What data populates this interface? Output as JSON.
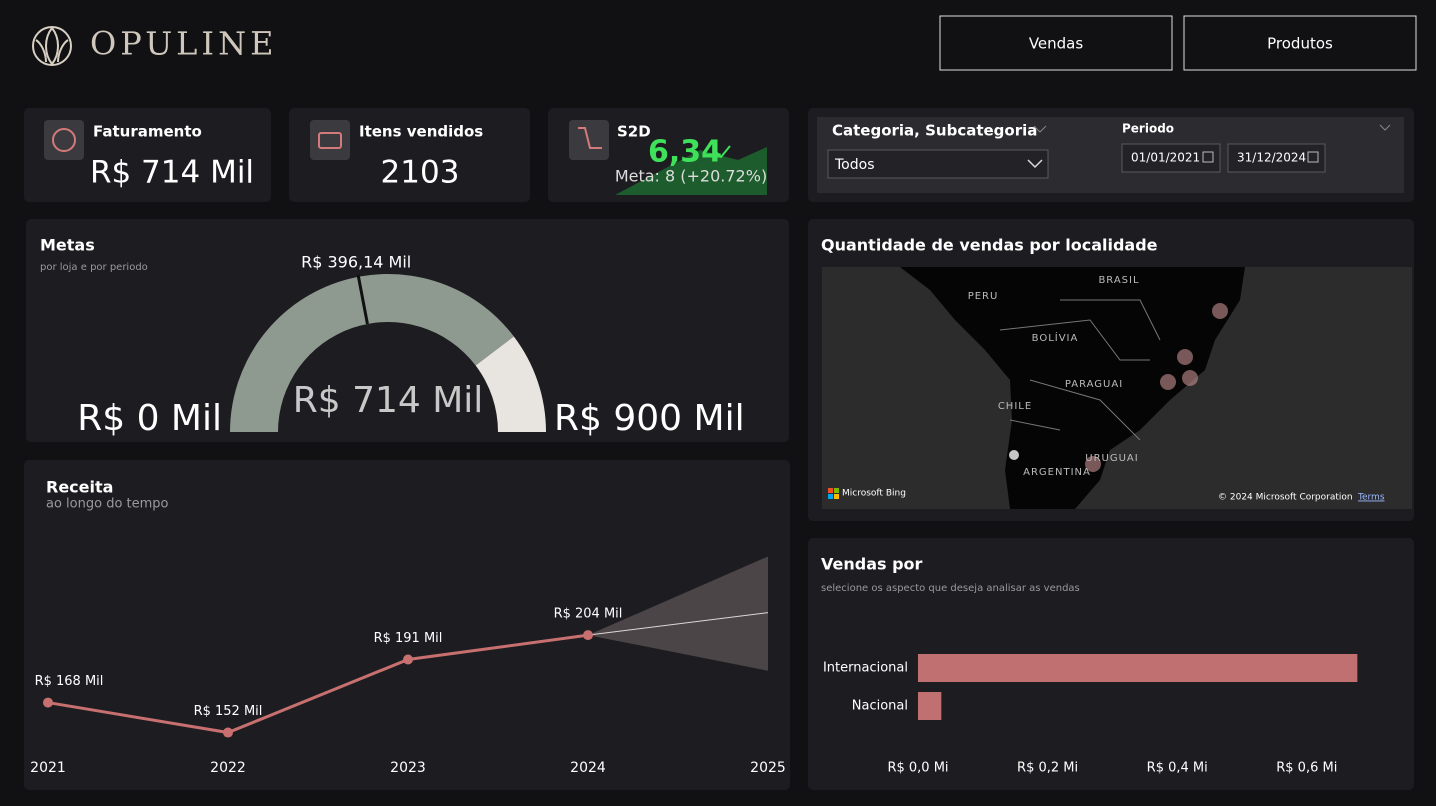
{
  "header": {
    "brand": "OPULINE",
    "nav": [
      "Vendas",
      "Produtos"
    ]
  },
  "kpis": [
    {
      "title": "Faturamento",
      "value": "R$ 714 Mil"
    },
    {
      "title": "Itens vendidos",
      "value": "2103"
    },
    {
      "title": "S2D",
      "value": "6,34",
      "goal": "Meta: 8 (+20.72%)"
    }
  ],
  "filters": {
    "category_label": "Categoria, Subcategoria",
    "category_value": "Todos",
    "period_label": "Periodo",
    "start": "01/01/2021",
    "end": "31/12/2024"
  },
  "goal_chart": {
    "type": "gauge",
    "title": "Metas",
    "subtitle": "por loja e por periodo",
    "value": 714,
    "value_label": "R$ 714 Mil",
    "target": 396.14,
    "target_label": "R$ 396,14 Mil",
    "range": [
      0,
      900
    ],
    "range_labels": [
      "R$ 0 Mil",
      "R$ 900 Mil"
    ],
    "colors": [
      "#8e9a8f",
      "#e8e4df"
    ]
  },
  "revenue_chart": {
    "type": "line",
    "title": "Receita",
    "subtitle": "ao longo do tempo",
    "x": [
      2021,
      2022,
      2023,
      2024
    ],
    "values": [
      168,
      152,
      191,
      204
    ],
    "value_labels": [
      "R$ 168 Mil",
      "R$ 152 Mil",
      "R$ 191 Mil",
      "R$ 204 Mil"
    ],
    "color": "#c7706f",
    "forecast": {
      "x": [
        2025
      ],
      "values": [
        216
      ],
      "lower": [
        185
      ],
      "upper": [
        246
      ]
    },
    "xlim": [
      2021,
      2025
    ],
    "xticks": [
      2021,
      2022,
      2023,
      2024,
      2025
    ],
    "ylim": [
      140,
      250
    ]
  },
  "map": {
    "title": "Quantidade de vendas por localidade",
    "labels": [
      "BRASIL",
      "PERU",
      "BOLÍVIA",
      "PARAGUAI",
      "CHILE",
      "ARGENTINA",
      "URUGUAI"
    ],
    "attribution": "Microsoft Bing",
    "copyright": "© 2024 Microsoft Corporation",
    "terms": "Terms"
  },
  "sales_chart": {
    "type": "bar",
    "orientation": "horizontal",
    "title": "Vendas por",
    "subtitle": "selecione os aspecto que deseja analisar as vendas",
    "categories": [
      "Internacional",
      "Nacional"
    ],
    "values": [
      0.678,
      0.036
    ],
    "color": "#c07070",
    "xlim": [
      0,
      0.7
    ],
    "xticks": [
      {
        "value": 0,
        "label": "R$ 0,0 Mi"
      },
      {
        "value": 0.2,
        "label": "R$ 0,2 Mi"
      },
      {
        "value": 0.4,
        "label": "R$ 0,4 Mi"
      },
      {
        "value": 0.6,
        "label": "R$ 0,6 Mi"
      }
    ]
  }
}
